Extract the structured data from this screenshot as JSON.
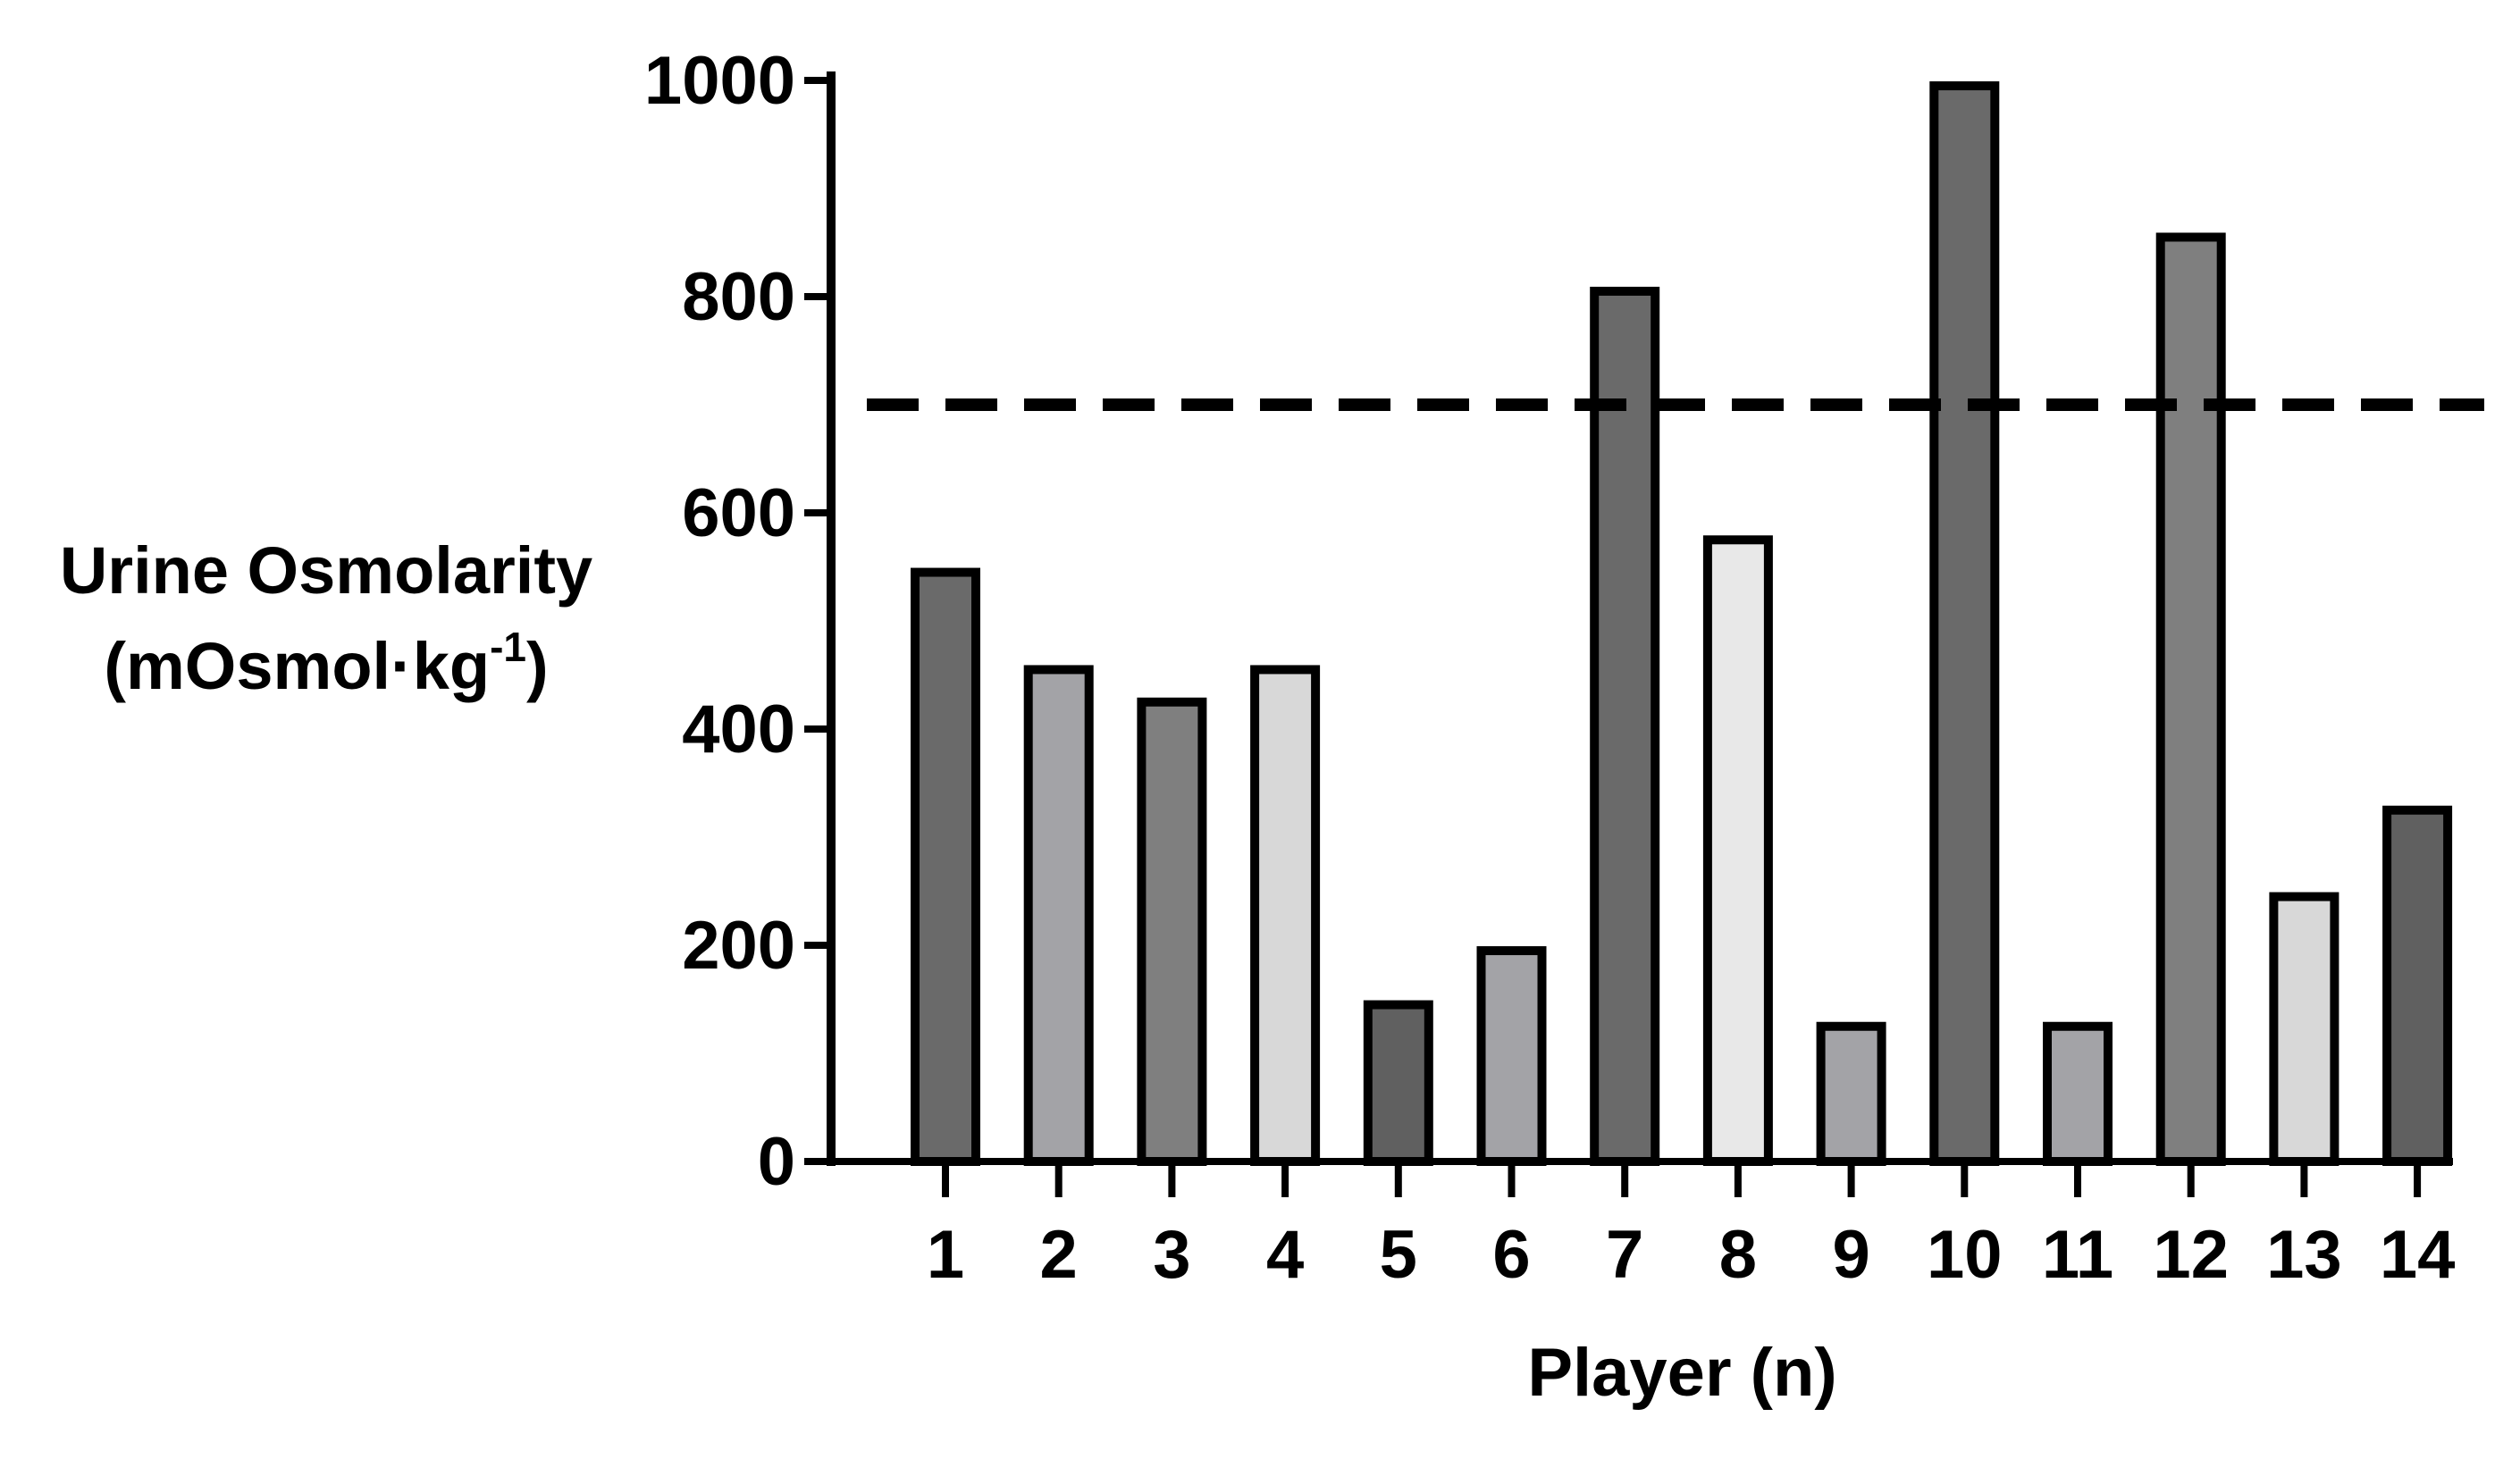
{
  "chart_data": {
    "type": "bar",
    "categories": [
      "1",
      "2",
      "3",
      "4",
      "5",
      "6",
      "7",
      "8",
      "9",
      "10",
      "11",
      "12",
      "13",
      "14"
    ],
    "values": [
      545,
      455,
      425,
      455,
      145,
      195,
      805,
      575,
      125,
      995,
      125,
      855,
      245,
      325
    ],
    "bar_colors": [
      "#6a6a6a",
      "#a3a3a7",
      "#7f7f7f",
      "#d8d8d8",
      "#606060",
      "#a3a3a7",
      "#6a6a6a",
      "#e8e8e8",
      "#a3a3a7",
      "#6a6a6a",
      "#a3a3a7",
      "#7f7f7f",
      "#d8d8d8",
      "#606060"
    ],
    "ylabel": {
      "line1": "Urine Osmolarity",
      "line2_main": "(mOsmol·kg",
      "line2_sup": "-1",
      "line2_end": ")"
    },
    "xlabel": "Player (n)",
    "ylim": [
      0,
      1000
    ],
    "yticks": [
      0,
      200,
      400,
      600,
      800,
      1000
    ],
    "reference_line": {
      "y": 700,
      "style": "dashed"
    },
    "grid": false,
    "legend": "none"
  }
}
